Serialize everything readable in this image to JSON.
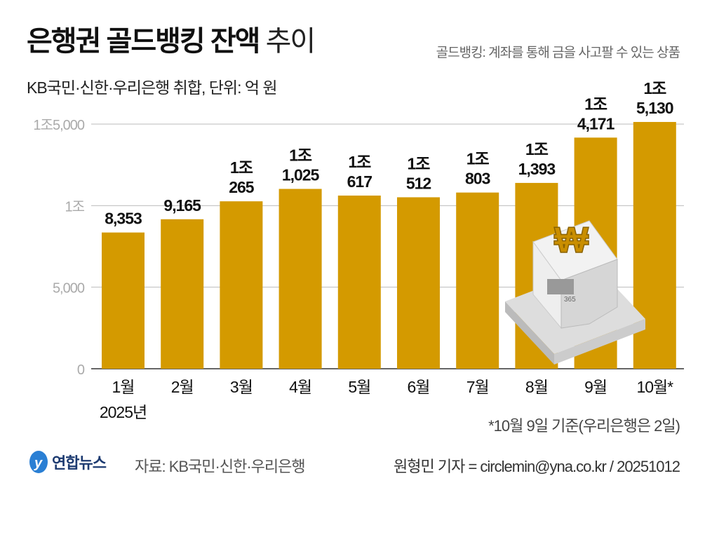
{
  "title": {
    "bold": "은행권 골드뱅킹 잔액",
    "light": "추이"
  },
  "note": "골드뱅킹: 계좌를 통해 금을 사고팔 수 있는 상품",
  "subtitle": "KB국민·신한·우리은행 취합, 단위: 억 원",
  "footnote": "*10월 9일 기준(우리은행은 2일)",
  "footer": {
    "logo": "연합뉴스",
    "source": "자료: KB국민·신한·우리은행",
    "credit": "원형민 기자 = circlemin@yna.co.kr / 20251012"
  },
  "colors": {
    "bar": "#D49A00",
    "grid": "#BBBBBB",
    "axis_label": "#AAAAAA"
  },
  "chart_data": {
    "type": "bar",
    "categories": [
      "1월",
      "2월",
      "3월",
      "4월",
      "5월",
      "6월",
      "7월",
      "8월",
      "9월",
      "10월*"
    ],
    "year_label": "2025년",
    "values": [
      8353,
      9165,
      10265,
      11025,
      10617,
      10512,
      10803,
      11393,
      14171,
      15130
    ],
    "data_labels": [
      [
        "8,353"
      ],
      [
        "9,165"
      ],
      [
        "1조",
        "265"
      ],
      [
        "1조",
        "1,025"
      ],
      [
        "1조",
        "617"
      ],
      [
        "1조",
        "512"
      ],
      [
        "1조",
        "803"
      ],
      [
        "1조",
        "1,393"
      ],
      [
        "1조",
        "4,171"
      ],
      [
        "1조",
        "5,130"
      ]
    ],
    "y_ticks": [
      0,
      5000,
      10000,
      15000
    ],
    "y_tick_labels": [
      "0",
      "5,000",
      "1조",
      "1조5,000"
    ],
    "ylim": [
      0,
      15000
    ],
    "grid": true,
    "ylabel": "",
    "xlabel": ""
  }
}
